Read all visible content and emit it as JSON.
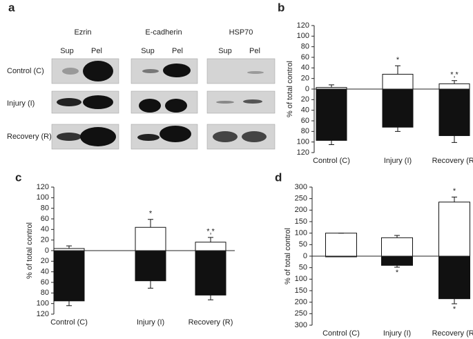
{
  "panel_a": {
    "label": "a",
    "proteins": [
      {
        "name": "Ezrin",
        "lanes": [
          "Sup",
          "Pel"
        ]
      },
      {
        "name": "E-cadherin",
        "lanes": [
          "Sup",
          "Pel"
        ]
      },
      {
        "name": "HSP70",
        "lanes": [
          "Sup",
          "Pel"
        ]
      }
    ],
    "rows": [
      "Control (C)",
      "Injury (I)",
      "Recovery (R)"
    ]
  },
  "chart_data": [
    {
      "type": "bar",
      "label": "b",
      "y_label": "% of total control",
      "categories": [
        "Control (C)",
        "Injury (I)",
        "Recovery (R)"
      ],
      "series": [
        {
          "color": "#ffffff",
          "values": [
            3,
            28,
            10
          ],
          "errors": [
            5,
            16,
            6
          ],
          "annotations": [
            null,
            "*",
            "*,*"
          ]
        },
        {
          "color": "#111111",
          "values": [
            -97,
            -72,
            -88
          ],
          "errors": [
            8,
            8,
            13
          ],
          "annotations": [
            null,
            null,
            null
          ]
        }
      ],
      "ylim": [
        -120,
        120
      ],
      "yticks": [
        {
          "value": -120,
          "label": "120"
        },
        {
          "value": -100,
          "label": "100"
        },
        {
          "value": -80,
          "label": "80"
        },
        {
          "value": -60,
          "label": "60"
        },
        {
          "value": -40,
          "label": "40"
        },
        {
          "value": -20,
          "label": "20"
        },
        0,
        20,
        40,
        60,
        80,
        100,
        120
      ]
    },
    {
      "type": "bar",
      "label": "c",
      "y_label": "% of total control",
      "categories": [
        "Control (C)",
        "Injury (I)",
        "Recovery (R)"
      ],
      "series": [
        {
          "color": "#ffffff",
          "values": [
            4,
            44,
            16
          ],
          "errors": [
            5,
            15,
            9
          ],
          "annotations": [
            null,
            "*",
            "*,*"
          ]
        },
        {
          "color": "#111111",
          "values": [
            -95,
            -57,
            -84
          ],
          "errors": [
            9,
            14,
            9
          ],
          "annotations": [
            null,
            null,
            null
          ]
        }
      ],
      "ylim": [
        -120,
        120
      ],
      "yticks": [
        {
          "value": -120,
          "label": "120"
        },
        {
          "value": -100,
          "label": "100"
        },
        {
          "value": -80,
          "label": "80"
        },
        {
          "value": -60,
          "label": "60"
        },
        {
          "value": -40,
          "label": "40"
        },
        {
          "value": -20,
          "label": "20"
        },
        0,
        20,
        40,
        60,
        80,
        100,
        120
      ]
    },
    {
      "type": "bar",
      "label": "d",
      "y_label": "% of total control",
      "categories": [
        "Control (C)",
        "Injury (I)",
        "Recovery (R)"
      ],
      "series": [
        {
          "color": "#ffffff",
          "values": [
            100,
            80,
            235
          ],
          "errors": [
            0,
            10,
            22
          ],
          "annotations": [
            null,
            null,
            "*"
          ]
        },
        {
          "color": "#111111",
          "values": [
            -3,
            -40,
            -185
          ],
          "errors": [
            0,
            8,
            22
          ],
          "annotations": [
            null,
            "*",
            "*"
          ]
        }
      ],
      "ylim": [
        -300,
        300
      ],
      "yticks": [
        {
          "value": -300,
          "label": "300"
        },
        {
          "value": -250,
          "label": "250"
        },
        {
          "value": -200,
          "label": "200"
        },
        {
          "value": -150,
          "label": "150"
        },
        {
          "value": -100,
          "label": "100"
        },
        {
          "value": -50,
          "label": "50"
        },
        0,
        50,
        100,
        150,
        200,
        250,
        300
      ]
    }
  ]
}
